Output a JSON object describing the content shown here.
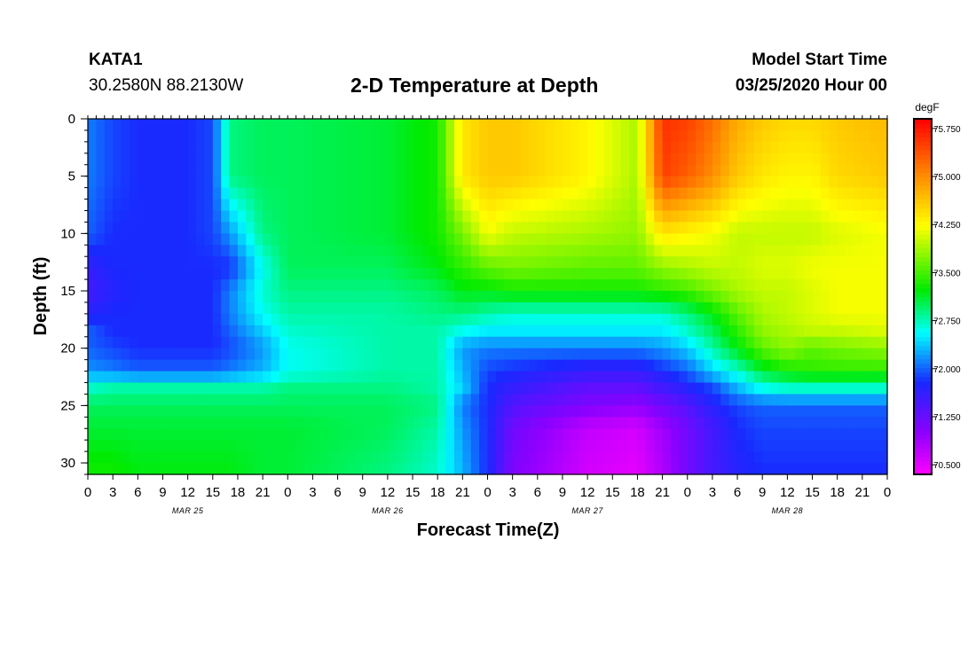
{
  "header": {
    "station": "KATA1",
    "coordinates": "30.2580N 88.2130W",
    "title": "2-D Temperature at Depth",
    "model_start_label": "Model Start Time",
    "model_start_time": "03/25/2020 Hour 00"
  },
  "chart_data": {
    "type": "heatmap",
    "title": "2-D Temperature at Depth",
    "xlabel": "Forecast Time(Z)",
    "ylabel": "Depth (ft)",
    "x_range_hours": [
      0,
      96
    ],
    "x_tick_labels": [
      "0",
      "3",
      "6",
      "9",
      "12",
      "15",
      "18",
      "21",
      "0",
      "3",
      "6",
      "9",
      "12",
      "15",
      "18",
      "21",
      "0",
      "3",
      "6",
      "9",
      "12",
      "15",
      "18",
      "21",
      "0",
      "3",
      "6",
      "9",
      "12",
      "15",
      "18",
      "21",
      "0"
    ],
    "day_labels": [
      "MAR 25",
      "MAR 26",
      "MAR 27",
      "MAR 28"
    ],
    "y_range": [
      0,
      31
    ],
    "y_ticks": [
      0,
      5,
      10,
      15,
      20,
      25,
      30
    ],
    "y_inverted": true,
    "colorbar": {
      "unit": "degF",
      "min": 70.35,
      "max": 75.9,
      "tick_labels": [
        "75.750",
        "75.000",
        "74.250",
        "73.500",
        "72.750",
        "72.000",
        "71.250",
        "70.500"
      ],
      "tick_values": [
        75.75,
        75.0,
        74.25,
        73.5,
        72.75,
        72.0,
        71.25,
        70.5
      ]
    },
    "grid": false,
    "depths_ft": [
      0,
      5,
      10,
      13,
      15,
      17,
      18.5,
      20,
      22,
      23.5,
      25,
      27,
      31
    ],
    "hours": [
      0,
      3,
      6,
      12,
      15,
      17,
      21,
      24,
      36,
      42,
      45,
      48,
      51,
      60,
      66,
      69,
      72,
      75,
      78,
      81,
      84,
      87,
      90,
      96
    ],
    "temperature_degF": [
      [
        72.1,
        71.9,
        71.8,
        71.8,
        71.9,
        72.9,
        73.0,
        73.0,
        73.1,
        73.3,
        74.4,
        74.6,
        74.6,
        74.3,
        73.9,
        75.6,
        75.5,
        75.2,
        74.8,
        74.6,
        74.5,
        74.5,
        74.6,
        74.7
      ],
      [
        72.1,
        71.9,
        71.8,
        71.8,
        71.9,
        72.9,
        73.0,
        73.0,
        73.1,
        73.3,
        74.4,
        74.6,
        74.6,
        74.3,
        73.9,
        75.5,
        75.3,
        75.0,
        74.6,
        74.4,
        74.3,
        74.3,
        74.5,
        74.6
      ],
      [
        72.0,
        71.8,
        71.8,
        71.8,
        71.9,
        72.2,
        72.9,
        73.0,
        73.1,
        73.3,
        73.7,
        74.2,
        74.0,
        73.9,
        73.8,
        74.4,
        74.3,
        74.2,
        74.0,
        74.0,
        74.0,
        74.0,
        74.1,
        74.2
      ],
      [
        71.6,
        71.8,
        71.8,
        71.8,
        71.8,
        71.8,
        72.6,
        73.0,
        73.0,
        73.2,
        73.4,
        73.6,
        73.7,
        73.6,
        73.6,
        73.8,
        73.9,
        74.0,
        74.0,
        74.1,
        74.1,
        74.2,
        74.2,
        74.2
      ],
      [
        71.5,
        71.7,
        71.8,
        71.8,
        71.8,
        72.1,
        72.7,
        72.9,
        72.9,
        73.0,
        73.2,
        73.2,
        73.3,
        73.3,
        73.3,
        73.4,
        73.5,
        73.7,
        73.9,
        74.0,
        74.0,
        74.1,
        74.2,
        74.2
      ],
      [
        71.7,
        71.8,
        71.8,
        71.8,
        71.8,
        72.1,
        72.6,
        72.8,
        72.8,
        72.9,
        72.9,
        72.8,
        72.7,
        72.7,
        72.7,
        72.7,
        72.9,
        73.2,
        73.6,
        73.9,
        74.0,
        74.1,
        74.2,
        74.2
      ],
      [
        72.0,
        71.8,
        71.8,
        71.8,
        71.8,
        72.0,
        72.4,
        72.7,
        72.8,
        72.8,
        72.6,
        72.5,
        72.5,
        72.5,
        72.5,
        72.5,
        72.7,
        73.0,
        73.4,
        73.8,
        73.9,
        74.0,
        74.0,
        74.1
      ],
      [
        72.0,
        71.9,
        71.8,
        71.8,
        71.8,
        71.9,
        72.2,
        72.6,
        72.8,
        72.8,
        72.2,
        72.1,
        72.1,
        72.1,
        72.1,
        72.2,
        72.4,
        72.8,
        73.2,
        73.6,
        73.8,
        73.6,
        73.7,
        73.8
      ],
      [
        72.2,
        72.1,
        72.0,
        72.0,
        72.0,
        72.1,
        72.3,
        72.6,
        72.8,
        72.8,
        72.3,
        71.9,
        71.8,
        71.6,
        71.6,
        71.8,
        72.0,
        72.4,
        72.7,
        73.1,
        73.3,
        73.4,
        73.4,
        73.4
      ],
      [
        72.7,
        72.8,
        72.8,
        72.8,
        72.8,
        72.8,
        72.8,
        72.9,
        72.9,
        72.8,
        72.4,
        71.8,
        71.6,
        71.3,
        71.3,
        71.5,
        71.7,
        71.9,
        72.3,
        72.6,
        72.7,
        72.7,
        72.7,
        72.7
      ],
      [
        73.0,
        73.0,
        73.0,
        73.0,
        73.0,
        73.0,
        73.0,
        73.0,
        73.0,
        72.9,
        72.1,
        71.8,
        71.4,
        71.1,
        71.0,
        71.2,
        71.4,
        71.7,
        71.9,
        72.0,
        72.0,
        72.0,
        72.0,
        72.0
      ],
      [
        73.1,
        73.1,
        73.1,
        73.1,
        73.1,
        73.1,
        73.1,
        73.1,
        73.0,
        72.8,
        72.2,
        71.8,
        71.2,
        70.7,
        70.6,
        70.9,
        71.2,
        71.5,
        71.8,
        71.9,
        71.9,
        71.9,
        71.9,
        71.9
      ],
      [
        73.3,
        73.3,
        73.2,
        73.2,
        73.2,
        73.2,
        73.1,
        73.1,
        72.9,
        72.7,
        72.3,
        71.8,
        71.1,
        70.6,
        70.5,
        70.8,
        71.2,
        71.5,
        71.7,
        71.8,
        71.8,
        71.8,
        71.8,
        71.8
      ]
    ]
  }
}
